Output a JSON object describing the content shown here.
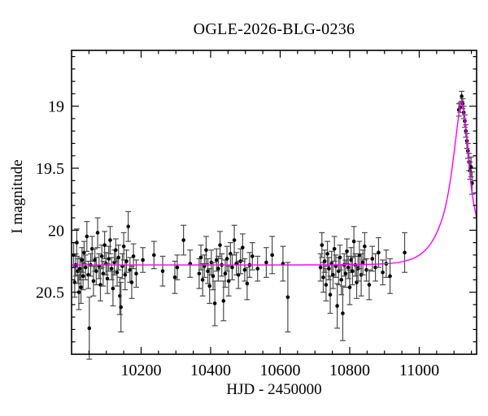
{
  "figure": {
    "background": "#ffffff",
    "frame_color": "#000000"
  },
  "chart_data": {
    "type": "scatter",
    "title": "OGLE-2026-BLG-0236",
    "xlabel": "HJD - 2450000",
    "ylabel": "I magnitude",
    "axis_orientation": "magnitude axis inverted (brighter up)",
    "xlim": [
      10000,
      11165
    ],
    "ylim": [
      18.55,
      21.0
    ],
    "x_major_ticks": [
      10200,
      10400,
      10600,
      10800,
      11000
    ],
    "x_major_labels": [
      "10200",
      "10400",
      "10600",
      "10800",
      "11000"
    ],
    "x_minor_step": 50,
    "y_major_ticks": [
      19.0,
      19.5,
      20.0,
      20.5
    ],
    "y_major_labels": [
      "19",
      "19.5",
      "20",
      "20.5"
    ],
    "y_minor_step": 0.1,
    "grid": false,
    "legend": null,
    "marker_color": "#000000",
    "errorbar_color": "#4a4a4a",
    "baseline_mag": 20.28,
    "model_curve": {
      "name": "microlensing-model",
      "color": "#ff00ff",
      "points": [
        [
          10000,
          20.28
        ],
        [
          10300,
          20.28
        ],
        [
          10600,
          20.28
        ],
        [
          10750,
          20.279
        ],
        [
          10850,
          20.276
        ],
        [
          10900,
          20.27
        ],
        [
          10940,
          20.26
        ],
        [
          10980,
          20.23
        ],
        [
          11010,
          20.18
        ],
        [
          11035,
          20.1
        ],
        [
          11055,
          19.99
        ],
        [
          11070,
          19.87
        ],
        [
          11082,
          19.72
        ],
        [
          11092,
          19.55
        ],
        [
          11100,
          19.38
        ],
        [
          11107,
          19.22
        ],
        [
          11113,
          19.08
        ],
        [
          11117,
          19.0
        ],
        [
          11120,
          18.965
        ],
        [
          11123,
          18.97
        ],
        [
          11127,
          19.03
        ],
        [
          11131,
          19.11
        ],
        [
          11136,
          19.24
        ],
        [
          11141,
          19.39
        ],
        [
          11146,
          19.55
        ],
        [
          11151,
          19.68
        ],
        [
          11157,
          19.79
        ],
        [
          11165,
          19.9
        ]
      ]
    },
    "points": [
      [
        10006,
        20.2,
        0.1
      ],
      [
        10009,
        20.42,
        0.12
      ],
      [
        10012,
        20.28,
        0.09
      ],
      [
        10015,
        20.1,
        0.11
      ],
      [
        10018,
        20.33,
        0.1
      ],
      [
        10021,
        20.5,
        0.14
      ],
      [
        10024,
        20.31,
        0.09
      ],
      [
        10027,
        20.46,
        0.13
      ],
      [
        10030,
        20.24,
        0.1
      ],
      [
        10033,
        20.37,
        0.11
      ],
      [
        10036,
        20.18,
        0.09
      ],
      [
        10040,
        20.3,
        0.1
      ],
      [
        10044,
        20.05,
        0.12
      ],
      [
        10048,
        20.36,
        0.11
      ],
      [
        10051,
        20.79,
        0.25
      ],
      [
        10055,
        20.28,
        0.09
      ],
      [
        10059,
        20.15,
        0.1
      ],
      [
        10063,
        20.41,
        0.12
      ],
      [
        10067,
        20.24,
        0.09
      ],
      [
        10071,
        20.33,
        0.11
      ],
      [
        10075,
        20.02,
        0.12
      ],
      [
        10079,
        20.29,
        0.1
      ],
      [
        10083,
        20.44,
        0.13
      ],
      [
        10087,
        20.21,
        0.09
      ],
      [
        10091,
        20.35,
        0.1
      ],
      [
        10095,
        20.12,
        0.11
      ],
      [
        10099,
        20.27,
        0.09
      ],
      [
        10103,
        20.39,
        0.12
      ],
      [
        10107,
        20.23,
        0.1
      ],
      [
        10111,
        20.08,
        0.11
      ],
      [
        10115,
        20.31,
        0.09
      ],
      [
        10119,
        20.47,
        0.14
      ],
      [
        10123,
        20.26,
        0.1
      ],
      [
        10127,
        20.16,
        0.09
      ],
      [
        10131,
        20.34,
        0.11
      ],
      [
        10135,
        20.22,
        0.1
      ],
      [
        10139,
        20.53,
        0.15
      ],
      [
        10142,
        20.62,
        0.2
      ],
      [
        10146,
        20.29,
        0.1
      ],
      [
        10150,
        20.13,
        0.11
      ],
      [
        10154,
        20.36,
        0.12
      ],
      [
        10158,
        20.25,
        0.09
      ],
      [
        10163,
        19.97,
        0.12
      ],
      [
        10168,
        20.32,
        0.1
      ],
      [
        10173,
        20.42,
        0.13
      ],
      [
        10178,
        20.21,
        0.1
      ],
      [
        10186,
        20.35,
        0.11
      ],
      [
        10205,
        20.24,
        0.1
      ],
      [
        10237,
        20.2,
        0.11
      ],
      [
        10262,
        20.33,
        0.12
      ],
      [
        10297,
        20.38,
        0.13
      ],
      [
        10304,
        20.3,
        0.1
      ],
      [
        10322,
        20.08,
        0.12
      ],
      [
        10341,
        20.27,
        0.11
      ],
      [
        10367,
        20.35,
        0.12
      ],
      [
        10372,
        20.22,
        0.1
      ],
      [
        10377,
        20.4,
        0.13
      ],
      [
        10382,
        20.29,
        0.09
      ],
      [
        10387,
        20.16,
        0.11
      ],
      [
        10392,
        20.33,
        0.1
      ],
      [
        10397,
        20.45,
        0.14
      ],
      [
        10402,
        20.26,
        0.1
      ],
      [
        10407,
        20.37,
        0.11
      ],
      [
        10412,
        20.59,
        0.18
      ],
      [
        10417,
        20.24,
        0.09
      ],
      [
        10422,
        20.31,
        0.1
      ],
      [
        10427,
        20.12,
        0.11
      ],
      [
        10432,
        20.28,
        0.09
      ],
      [
        10437,
        20.57,
        0.16
      ],
      [
        10442,
        20.35,
        0.11
      ],
      [
        10447,
        20.23,
        0.1
      ],
      [
        10452,
        20.41,
        0.12
      ],
      [
        10457,
        20.19,
        0.09
      ],
      [
        10462,
        20.3,
        0.1
      ],
      [
        10468,
        20.08,
        0.12
      ],
      [
        10474,
        20.27,
        0.09
      ],
      [
        10480,
        20.36,
        0.11
      ],
      [
        10486,
        20.25,
        0.1
      ],
      [
        10492,
        20.14,
        0.11
      ],
      [
        10498,
        20.32,
        0.09
      ],
      [
        10505,
        20.43,
        0.13
      ],
      [
        10512,
        20.28,
        0.1
      ],
      [
        10520,
        20.21,
        0.11
      ],
      [
        10535,
        20.31,
        0.1
      ],
      [
        10560,
        20.26,
        0.12
      ],
      [
        10577,
        20.2,
        0.15
      ],
      [
        10608,
        20.27,
        0.14
      ],
      [
        10622,
        20.54,
        0.28
      ],
      [
        10716,
        20.3,
        0.11
      ],
      [
        10720,
        20.12,
        0.1
      ],
      [
        10724,
        20.38,
        0.12
      ],
      [
        10728,
        20.25,
        0.09
      ],
      [
        10732,
        20.44,
        0.13
      ],
      [
        10736,
        20.19,
        0.1
      ],
      [
        10740,
        20.31,
        0.09
      ],
      [
        10744,
        20.52,
        0.15
      ],
      [
        10748,
        20.27,
        0.1
      ],
      [
        10752,
        20.36,
        0.11
      ],
      [
        10756,
        20.15,
        0.1
      ],
      [
        10760,
        20.29,
        0.09
      ],
      [
        10764,
        20.61,
        0.18
      ],
      [
        10768,
        20.33,
        0.11
      ],
      [
        10772,
        20.22,
        0.1
      ],
      [
        10776,
        20.4,
        0.12
      ],
      [
        10780,
        20.67,
        0.22
      ],
      [
        10784,
        20.28,
        0.09
      ],
      [
        10788,
        20.35,
        0.11
      ],
      [
        10792,
        20.17,
        0.1
      ],
      [
        10796,
        20.3,
        0.09
      ],
      [
        10800,
        20.46,
        0.14
      ],
      [
        10804,
        20.24,
        0.1
      ],
      [
        10808,
        20.33,
        0.11
      ],
      [
        10812,
        20.09,
        0.12
      ],
      [
        10816,
        20.28,
        0.09
      ],
      [
        10820,
        20.42,
        0.13
      ],
      [
        10824,
        20.31,
        0.1
      ],
      [
        10828,
        20.2,
        0.11
      ],
      [
        10833,
        20.36,
        0.17
      ],
      [
        10838,
        20.26,
        0.1
      ],
      [
        10843,
        20.13,
        0.11
      ],
      [
        10848,
        20.32,
        0.09
      ],
      [
        10856,
        20.44,
        0.12
      ],
      [
        10865,
        20.23,
        0.1
      ],
      [
        10874,
        20.3,
        0.11
      ],
      [
        10883,
        20.18,
        0.12
      ],
      [
        10895,
        20.34,
        0.1
      ],
      [
        10905,
        20.27,
        0.11
      ],
      [
        10916,
        20.37,
        0.14
      ],
      [
        10958,
        20.18,
        0.16
      ],
      [
        11114,
        19.03,
        0.05
      ],
      [
        11118,
        19.01,
        0.04
      ],
      [
        11122,
        18.92,
        0.04
      ],
      [
        11125,
        18.98,
        0.04
      ],
      [
        11128,
        19.05,
        0.05
      ],
      [
        11131,
        19.12,
        0.05
      ],
      [
        11134,
        19.2,
        0.05
      ],
      [
        11137,
        19.28,
        0.06
      ],
      [
        11140,
        19.36,
        0.06
      ],
      [
        11143,
        19.45,
        0.07
      ],
      [
        11146,
        19.52,
        0.07
      ],
      [
        11149,
        19.49,
        0.08
      ],
      [
        11152,
        19.62,
        0.09
      ]
    ]
  }
}
